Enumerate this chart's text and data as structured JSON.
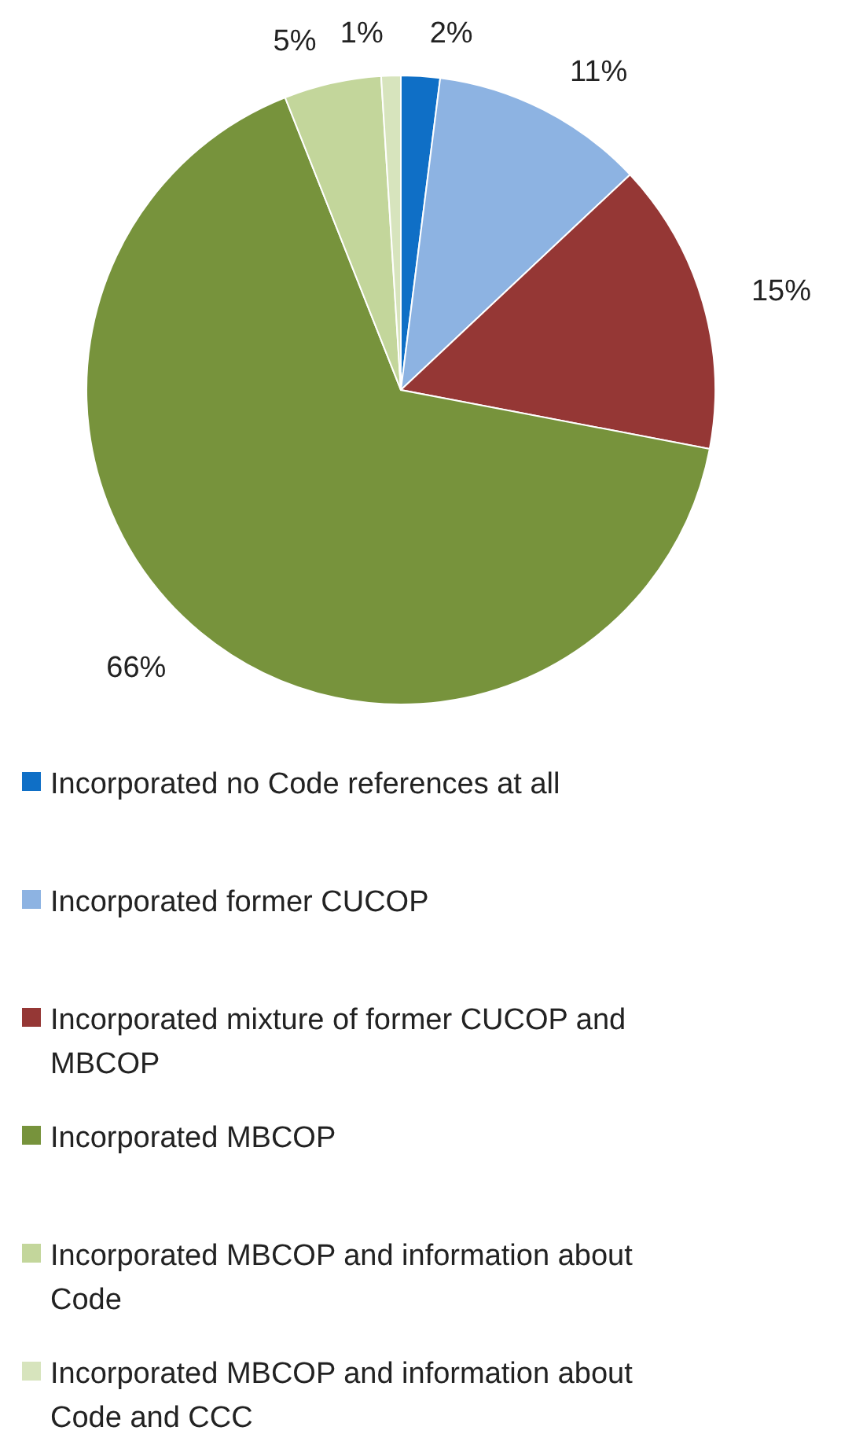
{
  "chart_data": {
    "type": "pie",
    "categories": [
      "Incorporated no Code references at all",
      "Incorporated former CUCOP",
      "Incorporated mixture of former CUCOP and MBCOP",
      "Incorporated MBCOP",
      "Incorporated MBCOP and information about Code",
      "Incorporated MBCOP and information about Code and CCC"
    ],
    "values": [
      2,
      11,
      15,
      66,
      5,
      1
    ],
    "colors": [
      "#0f6fc6",
      "#8db3e2",
      "#953735",
      "#77933c",
      "#c3d69b",
      "#d7e4bd"
    ],
    "value_labels": [
      "2%",
      "11%",
      "15%",
      "66%",
      "5%",
      "1%"
    ],
    "legend": "bottom"
  }
}
